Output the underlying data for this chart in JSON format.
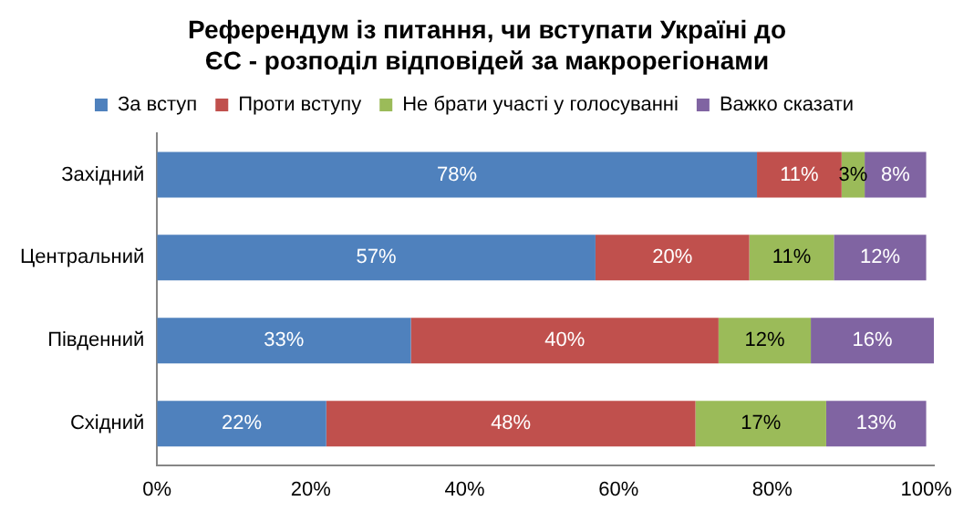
{
  "chart_data": {
    "type": "bar",
    "orientation": "horizontal",
    "stacked": true,
    "title": "Референдум із питання, чи вступати Україні до ЄС - розподіл відповідей за макрорегіонами",
    "categories": [
      "Західний",
      "Центральний",
      "Південний",
      "Східний"
    ],
    "series": [
      {
        "name": "За вступ",
        "color": "#4f81bd",
        "values": [
          78,
          57,
          33,
          22
        ],
        "value_labels": [
          "78%",
          "57%",
          "33%",
          "22%"
        ]
      },
      {
        "name": "Проти вступу",
        "color": "#c0504d",
        "values": [
          11,
          20,
          40,
          48
        ],
        "value_labels": [
          "11%",
          "20%",
          "40%",
          "48%"
        ]
      },
      {
        "name": "Не брати участі у голосуванні",
        "color": "#9bbb59",
        "values": [
          3,
          11,
          12,
          17
        ],
        "value_labels": [
          "3%",
          "11%",
          "12%",
          "17%"
        ]
      },
      {
        "name": "Важко сказати",
        "color": "#8064a2",
        "values": [
          8,
          12,
          16,
          13
        ],
        "value_labels": [
          "8%",
          "12%",
          "16%",
          "13%"
        ]
      }
    ],
    "xlim": [
      0,
      101
    ],
    "xticks": [
      {
        "value": 0,
        "label": "0%"
      },
      {
        "value": 20,
        "label": "20%"
      },
      {
        "value": 40,
        "label": "40%"
      },
      {
        "value": 60,
        "label": "60%"
      },
      {
        "value": 80,
        "label": "80%"
      },
      {
        "value": 100,
        "label": "100%"
      }
    ],
    "grid": false,
    "legend": "top"
  }
}
